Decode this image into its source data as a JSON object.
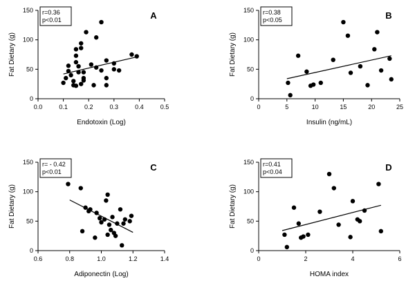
{
  "chart_data": [
    {
      "type": "scatter",
      "panel": "A",
      "xlabel": "Endotoxin (Log)",
      "ylabel": "Fat Dietary (g)",
      "xlim": [
        0.0,
        0.5
      ],
      "ylim": [
        0,
        150
      ],
      "xticks": [
        "0.0",
        "0.1",
        "0.2",
        "0.3",
        "0.4",
        "0.5"
      ],
      "yticks": [
        "0",
        "50",
        "100",
        "150"
      ],
      "stats": [
        "r=0.36",
        "p<0.01"
      ],
      "points": [
        [
          0.1,
          27
        ],
        [
          0.11,
          35
        ],
        [
          0.12,
          47
        ],
        [
          0.12,
          56
        ],
        [
          0.13,
          40
        ],
        [
          0.14,
          30
        ],
        [
          0.14,
          23
        ],
        [
          0.15,
          22
        ],
        [
          0.15,
          62
        ],
        [
          0.15,
          73
        ],
        [
          0.15,
          84
        ],
        [
          0.16,
          45
        ],
        [
          0.16,
          55
        ],
        [
          0.17,
          25
        ],
        [
          0.17,
          86
        ],
        [
          0.17,
          94
        ],
        [
          0.18,
          31
        ],
        [
          0.18,
          35
        ],
        [
          0.18,
          45
        ],
        [
          0.19,
          113
        ],
        [
          0.21,
          58
        ],
        [
          0.22,
          23
        ],
        [
          0.23,
          53
        ],
        [
          0.23,
          104
        ],
        [
          0.25,
          48
        ],
        [
          0.25,
          130
        ],
        [
          0.27,
          65
        ],
        [
          0.27,
          35
        ],
        [
          0.27,
          23
        ],
        [
          0.3,
          60
        ],
        [
          0.3,
          50
        ],
        [
          0.32,
          48
        ],
        [
          0.37,
          75
        ],
        [
          0.39,
          72
        ]
      ],
      "fit": [
        [
          0.1,
          42
        ],
        [
          0.39,
          71
        ]
      ]
    },
    {
      "type": "scatter",
      "panel": "B",
      "xlabel": "Insulin (ng/mL)",
      "ylabel": "Fat Dietary (g)",
      "xlim": [
        0,
        25
      ],
      "ylim": [
        0,
        150
      ],
      "xticks": [
        "0",
        "5",
        "10",
        "15",
        "20",
        "25"
      ],
      "yticks": [
        "0",
        "50",
        "100",
        "150"
      ],
      "stats": [
        "r=0.38",
        "p<0.05"
      ],
      "points": [
        [
          5.2,
          27
        ],
        [
          5.6,
          6
        ],
        [
          7.0,
          73
        ],
        [
          8.5,
          46
        ],
        [
          9.2,
          22
        ],
        [
          9.7,
          24
        ],
        [
          11.0,
          27
        ],
        [
          13.2,
          66
        ],
        [
          15.0,
          130
        ],
        [
          15.8,
          107
        ],
        [
          16.3,
          44
        ],
        [
          18.0,
          55
        ],
        [
          19.3,
          23
        ],
        [
          20.5,
          84
        ],
        [
          21.0,
          113
        ],
        [
          21.7,
          48
        ],
        [
          23.2,
          68
        ],
        [
          23.5,
          33
        ]
      ],
      "fit": [
        [
          5.0,
          34
        ],
        [
          23.5,
          73
        ]
      ]
    },
    {
      "type": "scatter",
      "panel": "C",
      "xlabel": "Adiponectin (Log)",
      "ylabel": "Fat Dietary (g)",
      "xlim": [
        0.6,
        1.4
      ],
      "ylim": [
        0,
        150
      ],
      "xticks": [
        "0.6",
        "0.8",
        "1.0",
        "1.2",
        "1.4"
      ],
      "yticks": [
        "0",
        "50",
        "100",
        "150"
      ],
      "stats": [
        "r= - 0.42",
        "p<0.01"
      ],
      "points": [
        [
          0.79,
          113
        ],
        [
          0.87,
          106
        ],
        [
          0.88,
          33
        ],
        [
          0.9,
          73
        ],
        [
          0.92,
          67
        ],
        [
          0.93,
          70
        ],
        [
          0.96,
          22
        ],
        [
          0.97,
          64
        ],
        [
          0.99,
          55
        ],
        [
          1.0,
          48
        ],
        [
          1.02,
          53
        ],
        [
          1.03,
          85
        ],
        [
          1.04,
          95
        ],
        [
          1.04,
          27
        ],
        [
          1.05,
          44
        ],
        [
          1.06,
          35
        ],
        [
          1.07,
          57
        ],
        [
          1.08,
          30
        ],
        [
          1.09,
          25
        ],
        [
          1.1,
          46
        ],
        [
          1.12,
          70
        ],
        [
          1.13,
          9
        ],
        [
          1.14,
          46
        ],
        [
          1.15,
          53
        ],
        [
          1.18,
          50
        ],
        [
          1.19,
          59
        ]
      ],
      "fit": [
        [
          0.8,
          86
        ],
        [
          1.2,
          31
        ]
      ]
    },
    {
      "type": "scatter",
      "panel": "D",
      "xlabel": "HOMA index",
      "ylabel": "Fat Dietary (g)",
      "xlim": [
        0,
        6
      ],
      "ylim": [
        0,
        150
      ],
      "xticks": [
        "0",
        "2",
        "4",
        "6"
      ],
      "yticks": [
        "0",
        "50",
        "100",
        "150"
      ],
      "stats": [
        "r=0.41",
        "p<0.04"
      ],
      "points": [
        [
          1.1,
          27
        ],
        [
          1.2,
          6
        ],
        [
          1.5,
          73
        ],
        [
          1.7,
          46
        ],
        [
          1.8,
          22
        ],
        [
          1.9,
          24
        ],
        [
          2.1,
          27
        ],
        [
          2.6,
          66
        ],
        [
          3.0,
          130
        ],
        [
          3.2,
          106
        ],
        [
          3.4,
          44
        ],
        [
          3.9,
          23
        ],
        [
          4.0,
          84
        ],
        [
          4.2,
          53
        ],
        [
          4.3,
          50
        ],
        [
          4.5,
          68
        ],
        [
          5.1,
          113
        ],
        [
          5.2,
          33
        ]
      ],
      "fit": [
        [
          1.0,
          34
        ],
        [
          5.2,
          77
        ]
      ]
    }
  ]
}
